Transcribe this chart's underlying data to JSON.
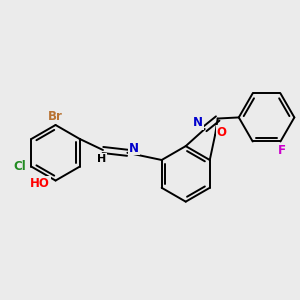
{
  "bg_color": "#ebebeb",
  "bond_color": "#000000",
  "bond_width": 1.4,
  "atom_labels": {
    "Br": {
      "color": "#b87333",
      "fontsize": 8.5
    },
    "Cl": {
      "color": "#228B22",
      "fontsize": 8.5
    },
    "HO": {
      "color": "#ff0000",
      "fontsize": 8.5
    },
    "H": {
      "color": "#000000",
      "fontsize": 8.0
    },
    "N": {
      "color": "#0000cc",
      "fontsize": 8.5
    },
    "O": {
      "color": "#ff0000",
      "fontsize": 8.5
    },
    "F": {
      "color": "#cc00cc",
      "fontsize": 8.5
    }
  }
}
